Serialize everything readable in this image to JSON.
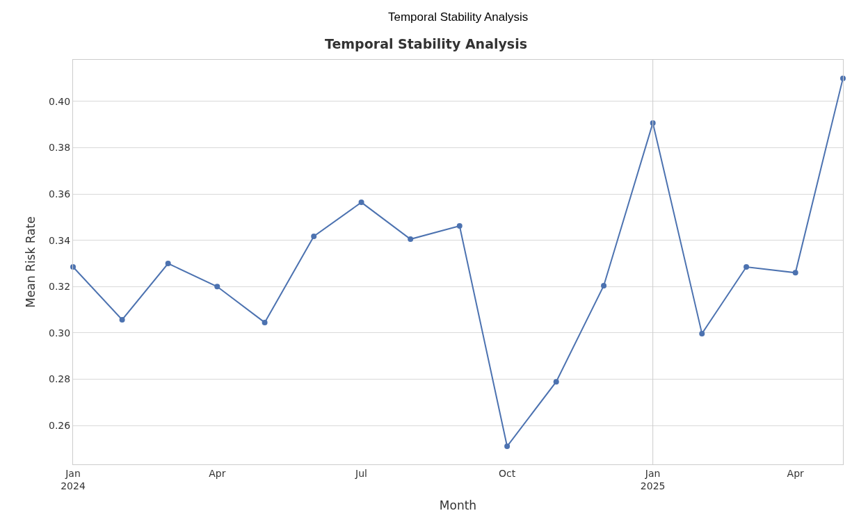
{
  "chart_data": {
    "type": "line",
    "title": "Temporal Stability Analysis",
    "annotations": [
      "Temporal Stability Analysis"
    ],
    "xlabel": "Month",
    "ylabel": "Mean Risk Rate",
    "x": [
      "2024-01",
      "2024-02",
      "2024-03",
      "2024-04",
      "2024-05",
      "2024-06",
      "2024-07",
      "2024-08",
      "2024-09",
      "2024-10",
      "2024-11",
      "2024-12",
      "2025-01",
      "2025-02",
      "2025-03",
      "2025-04",
      "2025-05"
    ],
    "series": [
      {
        "color": "#4c72b0",
        "values": [
          0.3285,
          0.3057,
          0.33,
          0.32,
          0.3045,
          0.3417,
          0.3564,
          0.3405,
          0.3462,
          0.251,
          0.2789,
          0.3204,
          0.3907,
          0.2997,
          0.3285,
          0.326,
          0.41
        ]
      }
    ],
    "xlim": [
      "2024-01",
      "2025-05"
    ],
    "ylim": [
      0.2432,
      0.418
    ],
    "xticks": [
      {
        "value": "2024-01",
        "label": "Jan\n2024"
      },
      {
        "value": "2024-04",
        "label": "Apr"
      },
      {
        "value": "2024-07",
        "label": "Jul"
      },
      {
        "value": "2024-10",
        "label": "Oct"
      },
      {
        "value": "2025-01",
        "label": "Jan\n2025"
      },
      {
        "value": "2025-04",
        "label": "Apr"
      }
    ],
    "yticks": [
      {
        "value": 0.26,
        "label": "0.26"
      },
      {
        "value": 0.28,
        "label": "0.28"
      },
      {
        "value": 0.3,
        "label": "0.30"
      },
      {
        "value": 0.32,
        "label": "0.32"
      },
      {
        "value": 0.34,
        "label": "0.34"
      },
      {
        "value": 0.36,
        "label": "0.36"
      },
      {
        "value": 0.38,
        "label": "0.38"
      },
      {
        "value": 0.4,
        "label": "0.40"
      }
    ],
    "ref_lines": [
      {
        "axis": "x",
        "value": "2025-01",
        "color": "#cccccc"
      }
    ],
    "grid": "y",
    "marker": "circle",
    "line_style": "solid"
  }
}
